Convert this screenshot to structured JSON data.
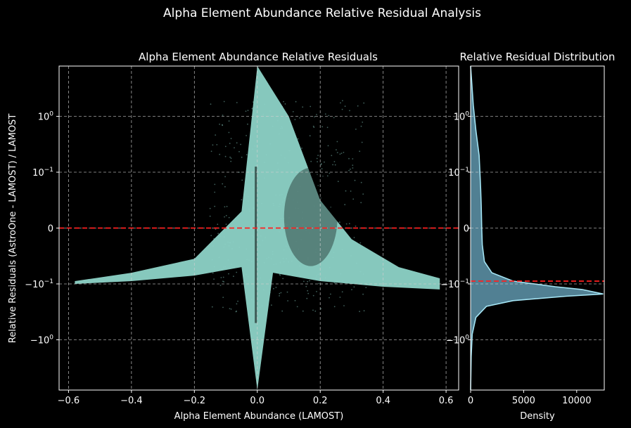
{
  "suptitle": "Alpha Element Abundance Relative Residual Analysis",
  "colors": {
    "background": "#000000",
    "scatter": "#8dd3c7",
    "reference_line": "#ff2020",
    "histogram_fill": "#5f97ad",
    "histogram_edge": "#a4e4f4",
    "grid": "#d0d0d0"
  },
  "chart_data": [
    {
      "type": "scatter",
      "title": "Alpha Element Abundance Relative Residuals",
      "xlabel": "Alpha Element Abundance (LAMOST)",
      "ylabel": "Relative Residuals (AstroOne - LAMOST) / LAMOST",
      "xlim": [
        -0.63,
        0.64
      ],
      "y_scale": "symlog",
      "ylim_scaled": [
        -2.9,
        2.9
      ],
      "grid": true,
      "x_ticks": [
        {
          "value": -0.6,
          "label": "−0.6"
        },
        {
          "value": -0.4,
          "label": "−0.4"
        },
        {
          "value": -0.2,
          "label": "−0.2"
        },
        {
          "value": 0.0,
          "label": "0.0"
        },
        {
          "value": 0.2,
          "label": "0.2"
        },
        {
          "value": 0.4,
          "label": "0.4"
        },
        {
          "value": 0.6,
          "label": "0.6"
        }
      ],
      "y_ticks": [
        {
          "value": 1,
          "base": "10",
          "exp": "0",
          "sign": ""
        },
        {
          "value": 0.1,
          "base": "10",
          "exp": "−1",
          "sign": ""
        },
        {
          "value": 0,
          "base": "0",
          "exp": "",
          "sign": ""
        },
        {
          "value": -0.1,
          "base": "10",
          "exp": "−1",
          "sign": "−"
        },
        {
          "value": -1,
          "base": "10",
          "exp": "0",
          "sign": "−"
        }
      ],
      "reference_line_y": 0,
      "density_envelope": {
        "description": "dense band of points",
        "lower": [
          [
            -0.58,
            -1.0
          ],
          [
            -0.4,
            -0.95
          ],
          [
            -0.2,
            -0.85
          ],
          [
            -0.05,
            -0.7
          ],
          [
            0.0,
            -2.9
          ],
          [
            0.05,
            -0.8
          ],
          [
            0.2,
            -0.95
          ],
          [
            0.4,
            -1.05
          ],
          [
            0.58,
            -1.1
          ]
        ],
        "upper": [
          [
            -0.58,
            -0.95
          ],
          [
            -0.4,
            -0.8
          ],
          [
            -0.2,
            -0.55
          ],
          [
            -0.05,
            0.3
          ],
          [
            0.0,
            2.9
          ],
          [
            0.1,
            2.0
          ],
          [
            0.2,
            0.5
          ],
          [
            0.3,
            -0.2
          ],
          [
            0.45,
            -0.7
          ],
          [
            0.58,
            -0.9
          ]
        ]
      }
    },
    {
      "type": "area",
      "title": "Relative Residual Distribution",
      "xlabel": "Density",
      "ylabel": "",
      "xlim": [
        0,
        12600
      ],
      "y_scale": "symlog",
      "ylim_scaled": [
        -2.9,
        2.9
      ],
      "grid": true,
      "x_ticks": [
        {
          "value": 0,
          "label": "0"
        },
        {
          "value": 5000,
          "label": "5000"
        },
        {
          "value": 10000,
          "label": "10000"
        }
      ],
      "reference_line_y": -0.95,
      "profile": [
        {
          "y": 2.9,
          "density": 0
        },
        {
          "y": 2.2,
          "density": 250
        },
        {
          "y": 1.75,
          "density": 500
        },
        {
          "y": 1.3,
          "density": 800
        },
        {
          "y": 0.9,
          "density": 900
        },
        {
          "y": 0.7,
          "density": 950
        },
        {
          "y": 0.4,
          "density": 1000
        },
        {
          "y": 0.0,
          "density": 1050
        },
        {
          "y": -0.3,
          "density": 1100
        },
        {
          "y": -0.6,
          "density": 1300
        },
        {
          "y": -0.8,
          "density": 2000
        },
        {
          "y": -0.95,
          "density": 4000
        },
        {
          "y": -1.05,
          "density": 8000
        },
        {
          "y": -1.1,
          "density": 10500
        },
        {
          "y": -1.18,
          "density": 12500
        },
        {
          "y": -1.22,
          "density": 9000
        },
        {
          "y": -1.3,
          "density": 4000
        },
        {
          "y": -1.4,
          "density": 1500
        },
        {
          "y": -1.6,
          "density": 500
        },
        {
          "y": -1.9,
          "density": 150
        },
        {
          "y": -2.3,
          "density": 50
        },
        {
          "y": -2.9,
          "density": 0
        }
      ]
    }
  ]
}
